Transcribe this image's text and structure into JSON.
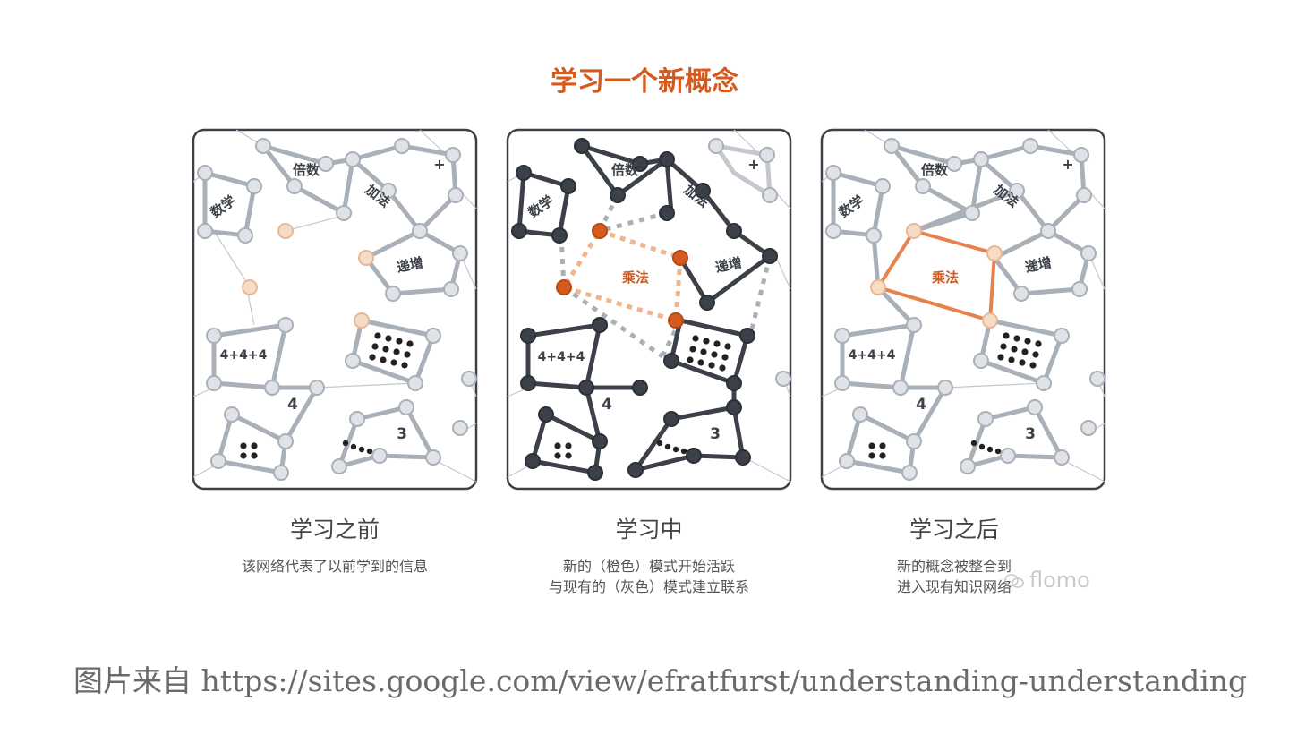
{
  "title": "学习一个新概念",
  "panels": [
    {
      "caption": "学习之前",
      "description": [
        "该网络代表了以前学到的信息"
      ],
      "node_labels": [
        "倍数",
        "数学",
        "加法",
        "递增",
        "4+4+4",
        "4",
        "3",
        "+"
      ],
      "new_concept": ""
    },
    {
      "caption": "学习中",
      "description": [
        "新的（橙色）模式开始活跃",
        "与现有的（灰色）模式建立联系"
      ],
      "node_labels": [
        "倍数",
        "数学",
        "加法",
        "递增",
        "4+4+4",
        "4",
        "3",
        "+"
      ],
      "new_concept": "乘法"
    },
    {
      "caption": "学习之后",
      "description": [
        "新的概念被整合到",
        "进入现有知识网络"
      ],
      "node_labels": [
        "倍数",
        "数学",
        "加法",
        "递增",
        "4+4+4",
        "4",
        "3",
        "+"
      ],
      "new_concept": "乘法"
    }
  ],
  "watermark": "flomo",
  "footer": "图片来自 https://sites.google.com/view/efratfurst/understanding-understanding",
  "colors": {
    "accent_orange": "#d45a1e",
    "existing_gray": "#aab0b8",
    "active_dark": "#3c4048",
    "new_light_orange": "#f3cfb2"
  }
}
